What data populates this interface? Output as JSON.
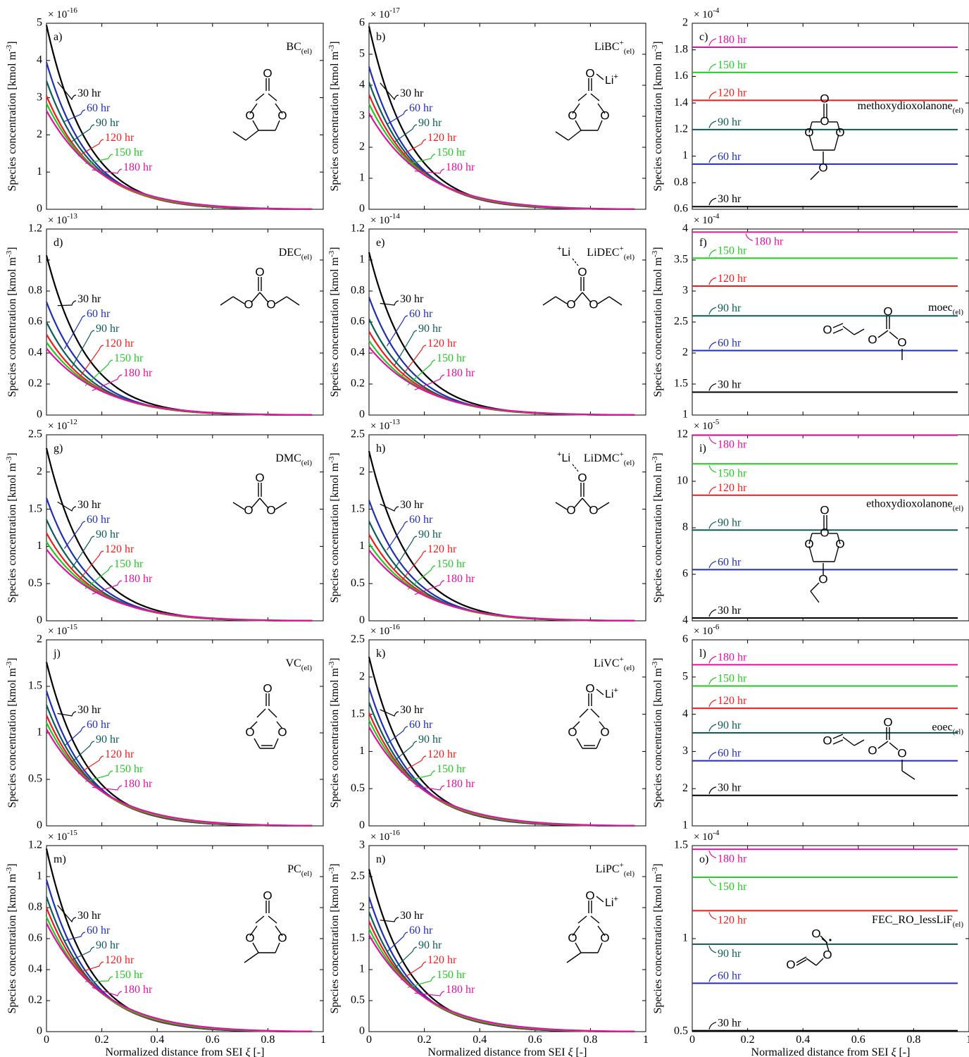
{
  "common": {
    "ylabel": "Species concentration [kmol m",
    "ylabel_sup": "-3",
    "ylabel_end": "]",
    "xlabel": "Normalized distance from SEI ",
    "xlabel_symbol": "ξ",
    "xlabel_end": " [-]",
    "series_names": [
      "30 hr",
      "60 hr",
      "90 hr",
      "120 hr",
      "150 hr",
      "180 hr"
    ],
    "series_colors": [
      "#000000",
      "#1f2fb4",
      "#0b5b57",
      "#ee1c1c",
      "#22c822",
      "#e0119e"
    ],
    "x_ticks": [
      "0",
      "0.2",
      "0.4",
      "0.6",
      "0.8",
      "1"
    ],
    "ylabel_bracket_note": "kmol m^-3"
  },
  "chart_data": [
    {
      "panel": "a)",
      "type": "line",
      "species": "BC",
      "species_sub": "(el)",
      "species_sup": "",
      "exponent": "-16",
      "ylim": [
        0,
        5
      ],
      "y_ticks": [
        "0",
        "1",
        "2",
        "3",
        "4",
        "5"
      ],
      "xlim": [
        0,
        1
      ],
      "profile": "decay",
      "series_y0": [
        4.95,
        3.95,
        3.45,
        3.05,
        2.85,
        2.65
      ],
      "molecule": "bc",
      "series": [
        {
          "name": "30 hr"
        },
        {
          "name": "60 hr"
        },
        {
          "name": "90 hr"
        },
        {
          "name": "120 hr"
        },
        {
          "name": "150 hr"
        },
        {
          "name": "180 hr"
        }
      ]
    },
    {
      "panel": "b)",
      "type": "line",
      "species": "LiBC",
      "species_sub": "(el)",
      "species_sup": "+",
      "exponent": "-17",
      "ylim": [
        0,
        6
      ],
      "y_ticks": [
        "0",
        "1",
        "2",
        "3",
        "4",
        "5",
        "6"
      ],
      "xlim": [
        0,
        1
      ],
      "profile": "decay",
      "series_y0": [
        5.9,
        4.6,
        4.1,
        3.7,
        3.4,
        3.1
      ],
      "molecule": "libc",
      "series": [
        {
          "name": "30 hr"
        },
        {
          "name": "60 hr"
        },
        {
          "name": "90 hr"
        },
        {
          "name": "120 hr"
        },
        {
          "name": "150 hr"
        },
        {
          "name": "180 hr"
        }
      ]
    },
    {
      "panel": "c)",
      "type": "line",
      "species": "methoxydioxolanone",
      "species_sub": "(el)",
      "species_sup": "",
      "exponent": "-4",
      "ylim": [
        0.6,
        2
      ],
      "y_ticks": [
        "0.6",
        "0.8",
        "1",
        "1.2",
        "1.4",
        "1.6",
        "1.8",
        "2"
      ],
      "xlim": [
        0,
        1
      ],
      "profile": "flat",
      "series_y0": [
        0.62,
        0.94,
        1.2,
        1.42,
        1.63,
        1.82
      ],
      "molecule": "methoxydioxolanone",
      "series": [
        {
          "name": "30 hr"
        },
        {
          "name": "60 hr"
        },
        {
          "name": "90 hr"
        },
        {
          "name": "120 hr"
        },
        {
          "name": "150 hr"
        },
        {
          "name": "180 hr"
        }
      ]
    },
    {
      "panel": "d)",
      "type": "line",
      "species": "DEC",
      "species_sub": "(el)",
      "species_sup": "",
      "exponent": "-13",
      "ylim": [
        0,
        1.2
      ],
      "y_ticks": [
        "0",
        "0.2",
        "0.4",
        "0.6",
        "0.8",
        "1",
        "1.2"
      ],
      "xlim": [
        0,
        1
      ],
      "profile": "decay",
      "series_y0": [
        1.03,
        0.73,
        0.6,
        0.52,
        0.47,
        0.43
      ],
      "molecule": "dec",
      "series": [
        {
          "name": "30 hr"
        },
        {
          "name": "60 hr"
        },
        {
          "name": "90 hr"
        },
        {
          "name": "120 hr"
        },
        {
          "name": "150 hr"
        },
        {
          "name": "180 hr"
        }
      ]
    },
    {
      "panel": "e)",
      "type": "line",
      "species": "LiDEC",
      "species_sub": "(el)",
      "species_sup": "+",
      "exponent": "-14",
      "ylim": [
        0,
        1.2
      ],
      "y_ticks": [
        "0",
        "0.2",
        "0.4",
        "0.6",
        "0.8",
        "1",
        "1.2"
      ],
      "xlim": [
        0,
        1
      ],
      "profile": "decay",
      "series_y0": [
        1.05,
        0.76,
        0.62,
        0.54,
        0.48,
        0.44
      ],
      "molecule": "lidec",
      "series": [
        {
          "name": "30 hr"
        },
        {
          "name": "60 hr"
        },
        {
          "name": "90 hr"
        },
        {
          "name": "120 hr"
        },
        {
          "name": "150 hr"
        },
        {
          "name": "180 hr"
        }
      ]
    },
    {
      "panel": "f)",
      "type": "line",
      "species": "moec",
      "species_sub": "(el)",
      "species_sup": "",
      "exponent": "-4",
      "ylim": [
        1,
        4
      ],
      "y_ticks": [
        "1",
        "1.5",
        "2",
        "2.5",
        "3",
        "3.5",
        "4"
      ],
      "xlim": [
        0,
        1
      ],
      "profile": "flat",
      "series_y0": [
        1.37,
        2.04,
        2.6,
        3.08,
        3.53,
        3.95
      ],
      "molecule": "moec",
      "series": [
        {
          "name": "30 hr"
        },
        {
          "name": "60 hr"
        },
        {
          "name": "90 hr"
        },
        {
          "name": "120 hr"
        },
        {
          "name": "150 hr"
        },
        {
          "name": "180 hr"
        }
      ]
    },
    {
      "panel": "g)",
      "type": "line",
      "species": "DMC",
      "species_sub": "(el)",
      "species_sup": "",
      "exponent": "-12",
      "ylim": [
        0,
        2.5
      ],
      "y_ticks": [
        "0",
        "0.5",
        "1",
        "1.5",
        "2",
        "2.5"
      ],
      "xlim": [
        0,
        1
      ],
      "profile": "decay",
      "series_y0": [
        2.32,
        1.65,
        1.36,
        1.18,
        1.06,
        0.96
      ],
      "molecule": "dmc",
      "series": [
        {
          "name": "30 hr"
        },
        {
          "name": "60 hr"
        },
        {
          "name": "90 hr"
        },
        {
          "name": "120 hr"
        },
        {
          "name": "150 hr"
        },
        {
          "name": "180 hr"
        }
      ]
    },
    {
      "panel": "h)",
      "type": "line",
      "species": "LiDMC",
      "species_sub": "(el)",
      "species_sup": "+",
      "exponent": "-13",
      "ylim": [
        0,
        2.5
      ],
      "y_ticks": [
        "0",
        "0.5",
        "1",
        "1.5",
        "2",
        "2.5"
      ],
      "xlim": [
        0,
        1
      ],
      "profile": "decay",
      "series_y0": [
        2.28,
        1.62,
        1.34,
        1.16,
        1.04,
        0.95
      ],
      "molecule": "lidmc",
      "series": [
        {
          "name": "30 hr"
        },
        {
          "name": "60 hr"
        },
        {
          "name": "90 hr"
        },
        {
          "name": "120 hr"
        },
        {
          "name": "150 hr"
        },
        {
          "name": "180 hr"
        }
      ]
    },
    {
      "panel": "i)",
      "type": "line",
      "species": "ethoxydioxolanone",
      "species_sub": "(el)",
      "species_sup": "",
      "exponent": "-5",
      "ylim": [
        4,
        12
      ],
      "y_ticks": [
        "4",
        "6",
        "8",
        "10",
        "12"
      ],
      "xlim": [
        0,
        1
      ],
      "profile": "flat",
      "series_y0": [
        4.12,
        6.2,
        7.9,
        9.4,
        10.75,
        11.98
      ],
      "molecule": "ethoxydioxolanone",
      "series": [
        {
          "name": "30 hr"
        },
        {
          "name": "60 hr"
        },
        {
          "name": "90 hr"
        },
        {
          "name": "120 hr"
        },
        {
          "name": "150 hr"
        },
        {
          "name": "180 hr"
        }
      ]
    },
    {
      "panel": "j)",
      "type": "line",
      "species": "VC",
      "species_sub": "(el)",
      "species_sup": "",
      "exponent": "-15",
      "ylim": [
        0,
        2
      ],
      "y_ticks": [
        "0",
        "0.5",
        "1",
        "1.5",
        "2"
      ],
      "xlim": [
        0,
        1
      ],
      "profile": "decay",
      "series_y0": [
        1.76,
        1.45,
        1.3,
        1.19,
        1.11,
        1.04
      ],
      "molecule": "vc",
      "series": [
        {
          "name": "30 hr"
        },
        {
          "name": "60 hr"
        },
        {
          "name": "90 hr"
        },
        {
          "name": "120 hr"
        },
        {
          "name": "150 hr"
        },
        {
          "name": "180 hr"
        }
      ]
    },
    {
      "panel": "k)",
      "type": "line",
      "species": "LiVC",
      "species_sub": "(el)",
      "species_sup": "+",
      "exponent": "-16",
      "ylim": [
        0,
        2.5
      ],
      "y_ticks": [
        "0",
        "0.5",
        "1",
        "1.5",
        "2",
        "2.5"
      ],
      "xlim": [
        0,
        1
      ],
      "profile": "decay",
      "series_y0": [
        2.27,
        1.86,
        1.66,
        1.52,
        1.42,
        1.33
      ],
      "molecule": "livc",
      "series": [
        {
          "name": "30 hr"
        },
        {
          "name": "60 hr"
        },
        {
          "name": "90 hr"
        },
        {
          "name": "120 hr"
        },
        {
          "name": "150 hr"
        },
        {
          "name": "180 hr"
        }
      ]
    },
    {
      "panel": "l)",
      "type": "line",
      "species": "eoec",
      "species_sub": "(el)",
      "species_sup": "",
      "exponent": "-6",
      "ylim": [
        1,
        6
      ],
      "y_ticks": [
        "1",
        "2",
        "3",
        "4",
        "5",
        "6"
      ],
      "xlim": [
        0,
        1
      ],
      "profile": "flat",
      "series_y0": [
        1.82,
        2.75,
        3.5,
        4.16,
        4.76,
        5.33
      ],
      "molecule": "eoec",
      "series": [
        {
          "name": "30 hr"
        },
        {
          "name": "60 hr"
        },
        {
          "name": "90 hr"
        },
        {
          "name": "120 hr"
        },
        {
          "name": "150 hr"
        },
        {
          "name": "180 hr"
        }
      ]
    },
    {
      "panel": "m)",
      "type": "line",
      "species": "PC",
      "species_sub": "(el)",
      "species_sup": "",
      "exponent": "-15",
      "ylim": [
        0,
        1.2
      ],
      "y_ticks": [
        "0",
        "0.2",
        "0.4",
        "0.6",
        "0.8",
        "1",
        "1.2"
      ],
      "xlim": [
        0,
        1
      ],
      "profile": "decay",
      "series_y0": [
        1.18,
        0.98,
        0.87,
        0.8,
        0.74,
        0.7
      ],
      "molecule": "pc",
      "series": [
        {
          "name": "30 hr"
        },
        {
          "name": "60 hr"
        },
        {
          "name": "90 hr"
        },
        {
          "name": "120 hr"
        },
        {
          "name": "150 hr"
        },
        {
          "name": "180 hr"
        }
      ]
    },
    {
      "panel": "n)",
      "type": "line",
      "species": "LiPC",
      "species_sub": "(el)",
      "species_sup": "+",
      "exponent": "-16",
      "ylim": [
        0,
        3
      ],
      "y_ticks": [
        "0",
        "0.5",
        "1",
        "1.5",
        "2",
        "2.5",
        "3"
      ],
      "xlim": [
        0,
        1
      ],
      "profile": "decay",
      "series_y0": [
        2.62,
        2.17,
        1.93,
        1.78,
        1.66,
        1.56
      ],
      "molecule": "lipc",
      "series": [
        {
          "name": "30 hr"
        },
        {
          "name": "60 hr"
        },
        {
          "name": "90 hr"
        },
        {
          "name": "120 hr"
        },
        {
          "name": "150 hr"
        },
        {
          "name": "180 hr"
        }
      ]
    },
    {
      "panel": "o)",
      "type": "line",
      "species": "FEC_RO_lessLiF",
      "species_sub": "(el)",
      "species_sup": "",
      "exponent": "-4",
      "ylim": [
        0.5,
        1.5
      ],
      "y_ticks": [
        "0.5",
        "1",
        "1.5"
      ],
      "xlim": [
        0,
        1
      ],
      "profile": "flat",
      "series_y0": [
        0.505,
        0.76,
        0.97,
        1.15,
        1.33,
        1.48
      ],
      "molecule": "fec",
      "series": [
        {
          "name": "30 hr"
        },
        {
          "name": "60 hr"
        },
        {
          "name": "90 hr"
        },
        {
          "name": "120 hr"
        },
        {
          "name": "150 hr"
        },
        {
          "name": "180 hr"
        }
      ]
    }
  ],
  "molecule_labels": {
    "o": "O",
    "li_plus": "Li",
    "plus": "+"
  }
}
